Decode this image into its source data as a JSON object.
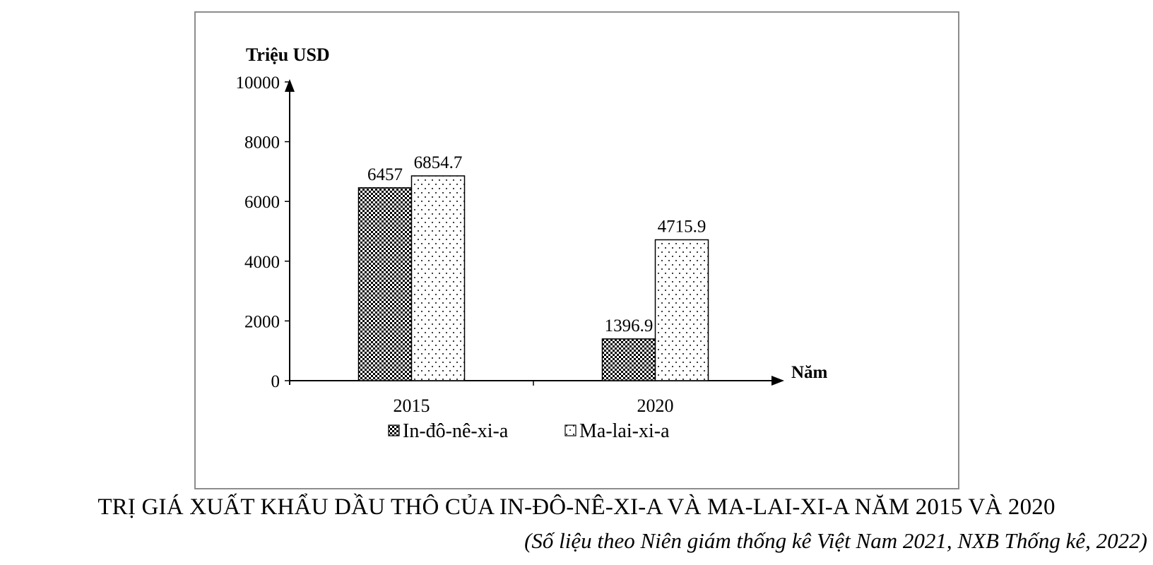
{
  "chart_data": {
    "type": "bar",
    "title": "TRỊ GIÁ XUẤT KHẨU DẦU THÔ CỦA IN-ĐÔ-NÊ-XI-A VÀ MA-LAI-XI-A NĂM 2015 VÀ 2020",
    "source": "(Số liệu theo Niên giám thống kê Việt Nam 2021, NXB Thống kê, 2022)",
    "ylabel": "Triệu USD",
    "xlabel": "Năm",
    "categories": [
      "2015",
      "2020"
    ],
    "ylim": [
      0,
      10000
    ],
    "yticks": [
      0,
      2000,
      4000,
      6000,
      8000,
      10000
    ],
    "series": [
      {
        "name": "In-đô-nê-xi-a",
        "values": [
          6457,
          1396.9
        ],
        "labels": [
          "6457",
          "1396.9"
        ],
        "pattern": "checker"
      },
      {
        "name": "Ma-lai-xi-a",
        "values": [
          6854.7,
          4715.9
        ],
        "labels": [
          "6854.7",
          "4715.9"
        ],
        "pattern": "dots"
      }
    ],
    "grid": false,
    "legend_position": "bottom"
  }
}
